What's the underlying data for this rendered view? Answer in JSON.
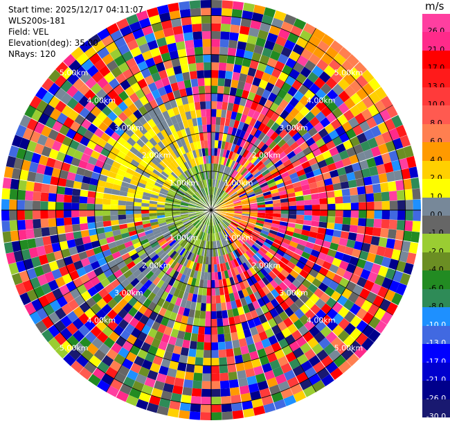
{
  "header": {
    "start_time": "Start time: 2025/12/17 04:11:07",
    "instrument": "WLS200s-181",
    "field": "Field: VEL",
    "elevation": "Elevation(deg): 35.00",
    "nrays": "NRays: 120"
  },
  "colorbar": {
    "unit": "m/s",
    "ticks": [
      "26.0",
      "21.0",
      "17.0",
      "13.0",
      "10.0",
      "8.0",
      "6.0",
      "4.0",
      "2.0",
      "1.0",
      "0.0",
      "-1.0",
      "-2.0",
      "-4.0",
      "-6.0",
      "-8.0",
      "-10.0",
      "-13.0",
      "-17.0",
      "-21.0",
      "-26.0",
      "-30.0"
    ],
    "colors": [
      "#ff3fa0",
      "#ff2a8a",
      "#ff0000",
      "#ff1a1a",
      "#ff3a3a",
      "#ff5a50",
      "#ff7f50",
      "#ff9a00",
      "#ffd000",
      "#ffff00",
      "#778899",
      "#666666",
      "#9acd32",
      "#6b8e23",
      "#228b22",
      "#2e8b57",
      "#1e90ff",
      "#4169e1",
      "#0000ff",
      "#0000cd",
      "#00008b",
      "#191970"
    ]
  },
  "chart_data": {
    "type": "heatmap",
    "projection": "polar (PPI)",
    "field": "VEL",
    "rays": 120,
    "elevation_deg": 35.0,
    "range_ring_labels": [
      "1.00km",
      "2.00km",
      "3.00km",
      "4.00km",
      "5.00km"
    ],
    "range_rings_km": [
      1,
      2,
      3,
      4,
      5
    ],
    "max_range_km": 5.4,
    "vmin": -30.0,
    "vmax": 26.0,
    "description_of_pattern": [
      {
        "sector": "upper-left",
        "range_km": [
          0.5,
          3.0
        ],
        "dominant": "yellow / gray / light green"
      },
      {
        "sector": "right",
        "range_km": [
          0.0,
          1.0
        ],
        "dominant": "orange"
      },
      {
        "sector": "near-center",
        "range_km": [
          0.0,
          1.0
        ],
        "dominant": "green"
      },
      {
        "sector": "outer",
        "range_km": [
          3.0,
          5.4
        ],
        "dominant": "noise (full palette)"
      }
    ]
  }
}
